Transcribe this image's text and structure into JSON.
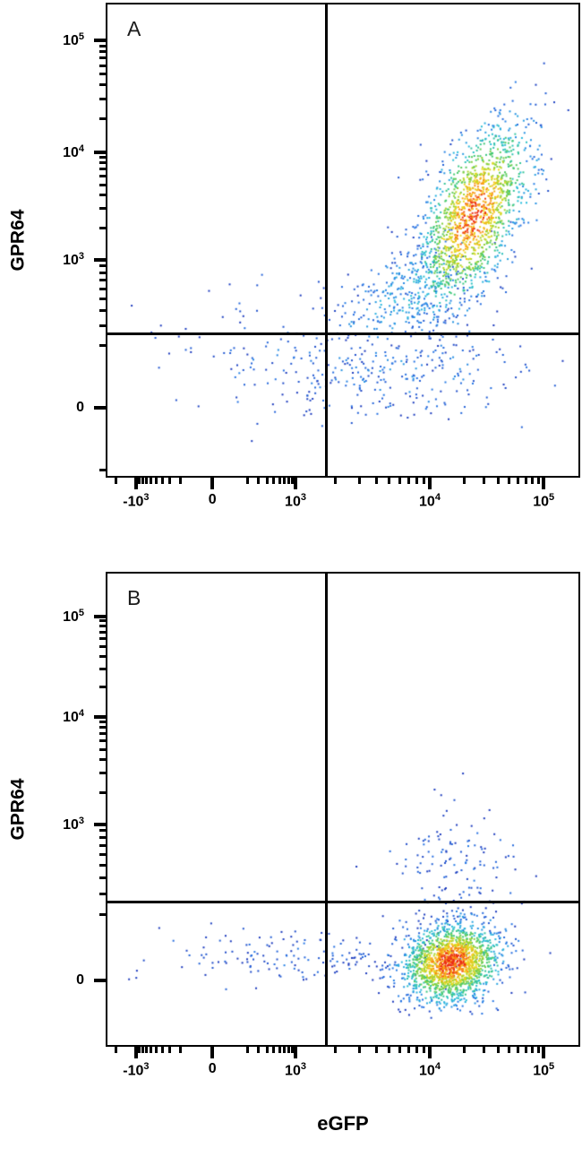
{
  "figure": {
    "x_axis_label": "eGFP",
    "y_axis_label": "GPR64",
    "background_color": "#ffffff",
    "axis_color": "#000000",
    "gate_color": "#000000"
  },
  "chart_data": [
    {
      "type": "scatter",
      "panel_label": "A",
      "xlabel": "eGFP",
      "ylabel": "GPR64",
      "x_ticks": [
        {
          "label": "-10^3",
          "value": -1000
        },
        {
          "label": "0",
          "value": 0
        },
        {
          "label": "10^3",
          "value": 1000
        },
        {
          "label": "10^4",
          "value": 10000
        },
        {
          "label": "10^5",
          "value": 100000
        }
      ],
      "y_ticks": [
        {
          "label": "0",
          "value": 0
        },
        {
          "label": "10^3",
          "value": 1000
        },
        {
          "label": "10^4",
          "value": 10000
        },
        {
          "label": "10^5",
          "value": 100000
        }
      ],
      "x_scale_anchors": [
        [
          -1000,
          0.064
        ],
        [
          0,
          0.225
        ],
        [
          1000,
          0.4
        ],
        [
          10000,
          0.683
        ],
        [
          100000,
          0.923
        ]
      ],
      "y_scale_anchors": [
        [
          0,
          0.147
        ],
        [
          1000,
          0.458
        ],
        [
          10000,
          0.685
        ],
        [
          100000,
          0.92
        ]
      ],
      "gates": {
        "x_value": 1700,
        "y_value": 250
      },
      "populations": [
        {
          "x": 25000,
          "y": 2600,
          "n": 1500,
          "sx": 0.06,
          "sy": 0.1,
          "rho": 0.55,
          "intensity": 0.95
        },
        {
          "x": 7000,
          "y": 550,
          "n": 320,
          "sx": 0.075,
          "sy": 0.065,
          "rho": 0.6,
          "intensity": 0.3
        },
        {
          "x": 6000,
          "y": 90,
          "n": 240,
          "sx": 0.14,
          "sy": 0.05,
          "rho": 0.05,
          "intensity": 0.18
        },
        {
          "x": 350,
          "y": 160,
          "n": 90,
          "sx": 0.11,
          "sy": 0.07,
          "rho": 0.1,
          "intensity": 0.12
        }
      ]
    },
    {
      "type": "scatter",
      "panel_label": "B",
      "xlabel": "eGFP",
      "ylabel": "GPR64",
      "x_ticks": [
        {
          "label": "-10^3",
          "value": -1000
        },
        {
          "label": "0",
          "value": 0
        },
        {
          "label": "10^3",
          "value": 1000
        },
        {
          "label": "10^4",
          "value": 10000
        },
        {
          "label": "10^5",
          "value": 100000
        }
      ],
      "y_ticks": [
        {
          "label": "0",
          "value": 0
        },
        {
          "label": "10^3",
          "value": 1000
        },
        {
          "label": "10^4",
          "value": 10000
        },
        {
          "label": "10^5",
          "value": 100000
        }
      ],
      "x_scale_anchors": [
        [
          -1000,
          0.064
        ],
        [
          0,
          0.225
        ],
        [
          1000,
          0.4
        ],
        [
          10000,
          0.683
        ],
        [
          100000,
          0.923
        ]
      ],
      "y_scale_anchors": [
        [
          0,
          0.14
        ],
        [
          1000,
          0.468
        ],
        [
          10000,
          0.694
        ],
        [
          100000,
          0.906
        ]
      ],
      "gates": {
        "x_value": 1700,
        "y_value": 250
      },
      "populations": [
        {
          "x": 16000,
          "y": 40,
          "n": 1700,
          "sx": 0.052,
          "sy": 0.042,
          "rho": 0.15,
          "intensity": 1.0
        },
        {
          "x": 1500,
          "y": 50,
          "n": 170,
          "sx": 0.17,
          "sy": 0.03,
          "rho": 0,
          "intensity": 0.1
        },
        {
          "x": 17000,
          "y": 420,
          "n": 140,
          "sx": 0.065,
          "sy": 0.07,
          "rho": 0.1,
          "intensity": 0.1
        }
      ]
    }
  ]
}
